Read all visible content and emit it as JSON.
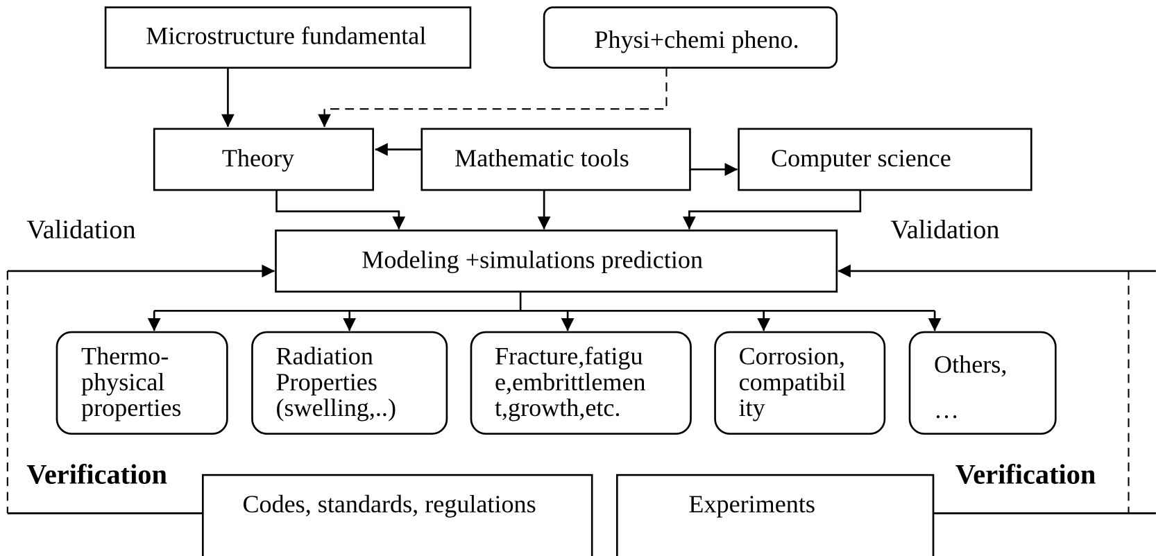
{
  "nodes": [
    {
      "label": "Microstructure fundamental"
    },
    {
      "label": "Physi+chemi pheno."
    },
    {
      "label": "Theory"
    },
    {
      "label": "Mathematic tools"
    },
    {
      "label": "Computer science"
    },
    {
      "label": "Modeling +simulations prediction"
    },
    {
      "lines": [
        "Thermo-",
        "physical",
        "properties"
      ]
    },
    {
      "lines": [
        "Radiation",
        "Properties",
        "(swelling,..)"
      ]
    },
    {
      "lines": [
        "Fracture,fatigu",
        "e,embrittlemen",
        "t,growth,etc."
      ]
    },
    {
      "lines": [
        "Corrosion,",
        "compatibil",
        "ity"
      ]
    },
    {
      "lines": [
        "Others,",
        "…"
      ]
    },
    {
      "label": "Codes, standards, regulations"
    },
    {
      "label": "Experiments"
    }
  ],
  "annotations": [
    {
      "label": "Validation"
    },
    {
      "label": "Validation"
    },
    {
      "label": "Verification"
    },
    {
      "label": "Verification"
    }
  ]
}
